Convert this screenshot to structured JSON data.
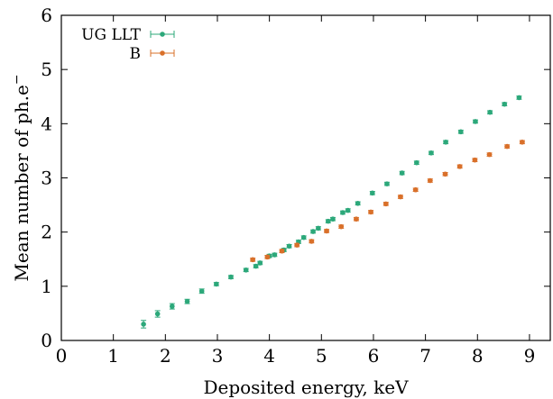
{
  "chart_data": {
    "type": "scatter",
    "title": "",
    "xlabel": "Deposited energy, keV",
    "ylabel": "Mean number of ph.e",
    "ylabel_superscript": "−",
    "xlim": [
      0,
      9.4
    ],
    "ylim": [
      0,
      6
    ],
    "xticks": [
      0,
      1,
      2,
      3,
      4,
      5,
      6,
      7,
      8,
      9
    ],
    "yticks": [
      0,
      1,
      2,
      3,
      4,
      5,
      6
    ],
    "grid": false,
    "legend_position": "top-left",
    "error_bars": true,
    "series": [
      {
        "name": "UG LLT",
        "color": "#2ca87a",
        "points": [
          {
            "x": 1.58,
            "y": 0.3,
            "yerr": 0.07,
            "xerr": 0.04
          },
          {
            "x": 1.85,
            "y": 0.49,
            "yerr": 0.06,
            "xerr": 0.04
          },
          {
            "x": 2.13,
            "y": 0.63,
            "yerr": 0.05,
            "xerr": 0.04
          },
          {
            "x": 2.42,
            "y": 0.72,
            "yerr": 0.04,
            "xerr": 0.04
          },
          {
            "x": 2.7,
            "y": 0.91,
            "yerr": 0.04,
            "xerr": 0.04
          },
          {
            "x": 2.98,
            "y": 1.04,
            "yerr": 0.03,
            "xerr": 0.04
          },
          {
            "x": 3.26,
            "y": 1.17,
            "yerr": 0.03,
            "xerr": 0.04
          },
          {
            "x": 3.55,
            "y": 1.3,
            "yerr": 0.03,
            "xerr": 0.04
          },
          {
            "x": 3.74,
            "y": 1.37,
            "yerr": 0.03,
            "xerr": 0.04
          },
          {
            "x": 3.82,
            "y": 1.43,
            "yerr": 0.03,
            "xerr": 0.04
          },
          {
            "x": 4.0,
            "y": 1.56,
            "yerr": 0.03,
            "xerr": 0.04
          },
          {
            "x": 4.1,
            "y": 1.58,
            "yerr": 0.03,
            "xerr": 0.04
          },
          {
            "x": 4.28,
            "y": 1.67,
            "yerr": 0.03,
            "xerr": 0.04
          },
          {
            "x": 4.38,
            "y": 1.74,
            "yerr": 0.03,
            "xerr": 0.04
          },
          {
            "x": 4.56,
            "y": 1.82,
            "yerr": 0.03,
            "xerr": 0.04
          },
          {
            "x": 4.66,
            "y": 1.9,
            "yerr": 0.03,
            "xerr": 0.04
          },
          {
            "x": 4.84,
            "y": 2.01,
            "yerr": 0.03,
            "xerr": 0.04
          },
          {
            "x": 4.94,
            "y": 2.07,
            "yerr": 0.03,
            "xerr": 0.04
          },
          {
            "x": 5.13,
            "y": 2.2,
            "yerr": 0.03,
            "xerr": 0.04
          },
          {
            "x": 5.22,
            "y": 2.24,
            "yerr": 0.03,
            "xerr": 0.04
          },
          {
            "x": 5.41,
            "y": 2.36,
            "yerr": 0.03,
            "xerr": 0.04
          },
          {
            "x": 5.51,
            "y": 2.4,
            "yerr": 0.03,
            "xerr": 0.04
          },
          {
            "x": 5.7,
            "y": 2.53,
            "yerr": 0.03,
            "xerr": 0.04
          },
          {
            "x": 5.98,
            "y": 2.72,
            "yerr": 0.03,
            "xerr": 0.04
          },
          {
            "x": 6.26,
            "y": 2.89,
            "yerr": 0.03,
            "xerr": 0.04
          },
          {
            "x": 6.55,
            "y": 3.09,
            "yerr": 0.03,
            "xerr": 0.04
          },
          {
            "x": 6.83,
            "y": 3.28,
            "yerr": 0.03,
            "xerr": 0.04
          },
          {
            "x": 7.11,
            "y": 3.46,
            "yerr": 0.03,
            "xerr": 0.04
          },
          {
            "x": 7.39,
            "y": 3.66,
            "yerr": 0.03,
            "xerr": 0.04
          },
          {
            "x": 7.68,
            "y": 3.85,
            "yerr": 0.03,
            "xerr": 0.04
          },
          {
            "x": 7.96,
            "y": 4.04,
            "yerr": 0.03,
            "xerr": 0.04
          },
          {
            "x": 8.24,
            "y": 4.21,
            "yerr": 0.03,
            "xerr": 0.04
          },
          {
            "x": 8.52,
            "y": 4.36,
            "yerr": 0.03,
            "xerr": 0.04
          },
          {
            "x": 8.8,
            "y": 4.48,
            "yerr": 0.03,
            "xerr": 0.04
          }
        ]
      },
      {
        "name": "B",
        "color": "#d9702a",
        "points": [
          {
            "x": 3.68,
            "y": 1.49,
            "yerr": 0.03,
            "xerr": 0.05
          },
          {
            "x": 3.96,
            "y": 1.54,
            "yerr": 0.03,
            "xerr": 0.05
          },
          {
            "x": 4.24,
            "y": 1.65,
            "yerr": 0.03,
            "xerr": 0.05
          },
          {
            "x": 4.53,
            "y": 1.76,
            "yerr": 0.03,
            "xerr": 0.05
          },
          {
            "x": 4.81,
            "y": 1.83,
            "yerr": 0.03,
            "xerr": 0.05
          },
          {
            "x": 5.1,
            "y": 2.02,
            "yerr": 0.03,
            "xerr": 0.05
          },
          {
            "x": 5.38,
            "y": 2.1,
            "yerr": 0.03,
            "xerr": 0.05
          },
          {
            "x": 5.67,
            "y": 2.24,
            "yerr": 0.03,
            "xerr": 0.05
          },
          {
            "x": 5.95,
            "y": 2.37,
            "yerr": 0.03,
            "xerr": 0.05
          },
          {
            "x": 6.24,
            "y": 2.52,
            "yerr": 0.03,
            "xerr": 0.05
          },
          {
            "x": 6.52,
            "y": 2.65,
            "yerr": 0.03,
            "xerr": 0.05
          },
          {
            "x": 6.81,
            "y": 2.78,
            "yerr": 0.03,
            "xerr": 0.05
          },
          {
            "x": 7.09,
            "y": 2.95,
            "yerr": 0.03,
            "xerr": 0.05
          },
          {
            "x": 7.38,
            "y": 3.07,
            "yerr": 0.03,
            "xerr": 0.05
          },
          {
            "x": 7.66,
            "y": 3.21,
            "yerr": 0.03,
            "xerr": 0.05
          },
          {
            "x": 7.95,
            "y": 3.33,
            "yerr": 0.03,
            "xerr": 0.05
          },
          {
            "x": 8.23,
            "y": 3.43,
            "yerr": 0.03,
            "xerr": 0.05
          },
          {
            "x": 8.57,
            "y": 3.58,
            "yerr": 0.03,
            "xerr": 0.05
          },
          {
            "x": 8.86,
            "y": 3.66,
            "yerr": 0.03,
            "xerr": 0.05
          }
        ]
      }
    ]
  }
}
